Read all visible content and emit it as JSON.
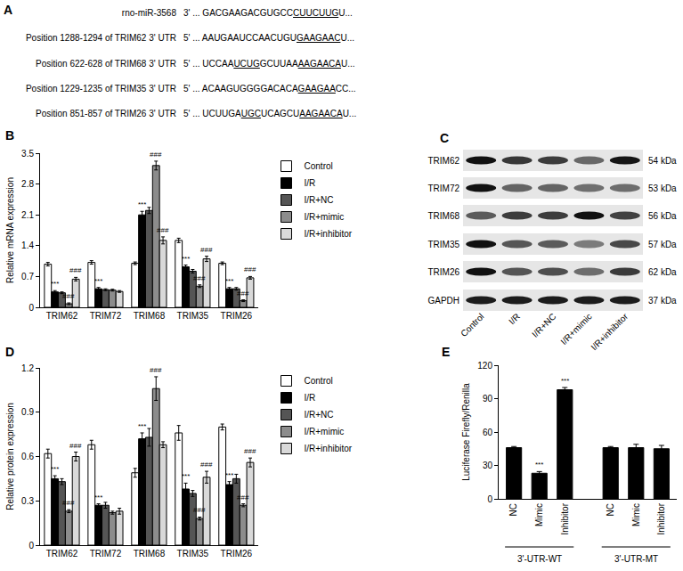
{
  "chart_data": [
    {
      "panel": "B",
      "type": "bar",
      "y_label": "Relative mRNA expression",
      "categories": [
        "TRIM62",
        "TRIM72",
        "TRIM68",
        "TRIM35",
        "TRIM26"
      ],
      "series": [
        {
          "name": "Control",
          "color": "#ffffff",
          "values": [
            0.98,
            1.02,
            1.0,
            1.52,
            1.0
          ],
          "error": [
            0.04,
            0.04,
            0.03,
            0.05,
            0.03
          ],
          "significance": [
            null,
            null,
            null,
            null,
            null
          ]
        },
        {
          "name": "I/R",
          "color": "#000000",
          "values": [
            0.35,
            0.42,
            2.1,
            0.92,
            0.42
          ],
          "error": [
            0.03,
            0.03,
            0.08,
            0.04,
            0.03
          ],
          "significance": [
            "***",
            "***",
            "***",
            "***",
            "***"
          ]
        },
        {
          "name": "I/R+NC",
          "color": "#555555",
          "values": [
            0.33,
            0.4,
            2.2,
            0.82,
            0.42
          ],
          "error": [
            0.02,
            0.02,
            0.07,
            0.04,
            0.03
          ],
          "significance": [
            null,
            null,
            null,
            null,
            null
          ]
        },
        {
          "name": "I/R+mimic",
          "color": "#8c8c8c",
          "values": [
            0.08,
            0.39,
            3.22,
            0.48,
            0.15
          ],
          "error": [
            0.02,
            0.02,
            0.1,
            0.03,
            0.02
          ],
          "significance": [
            "###",
            null,
            "###",
            "###",
            "###"
          ]
        },
        {
          "name": "I/R+inhibitor",
          "color": "#d9d9d9",
          "values": [
            0.64,
            0.36,
            1.52,
            1.1,
            0.67
          ],
          "error": [
            0.04,
            0.02,
            0.08,
            0.06,
            0.03
          ],
          "significance": [
            "###",
            null,
            "###",
            "###",
            "###"
          ]
        }
      ],
      "ylim": [
        0,
        3.5
      ],
      "yticks": [
        0,
        0.7,
        1.4,
        2.1,
        2.8,
        3.5
      ],
      "grid": false,
      "legend": "right"
    },
    {
      "panel": "D",
      "type": "bar",
      "y_label": "Relative protein expression",
      "categories": [
        "TRIM62",
        "TRIM72",
        "TRIM68",
        "TRIM35",
        "TRIM26"
      ],
      "series": [
        {
          "name": "Control",
          "color": "#ffffff",
          "values": [
            0.62,
            0.68,
            0.49,
            0.76,
            0.8
          ],
          "error": [
            0.03,
            0.03,
            0.03,
            0.05,
            0.02
          ],
          "significance": [
            null,
            null,
            null,
            null,
            null
          ]
        },
        {
          "name": "I/R",
          "color": "#000000",
          "values": [
            0.45,
            0.27,
            0.72,
            0.38,
            0.41
          ],
          "error": [
            0.02,
            0.01,
            0.04,
            0.04,
            0.02
          ],
          "significance": [
            "***",
            "***",
            "***",
            "***",
            "***"
          ]
        },
        {
          "name": "I/R+NC",
          "color": "#555555",
          "values": [
            0.43,
            0.27,
            0.73,
            0.35,
            0.45
          ],
          "error": [
            0.02,
            0.02,
            0.06,
            0.02,
            0.03
          ],
          "significance": [
            null,
            null,
            null,
            null,
            null
          ]
        },
        {
          "name": "I/R+mimic",
          "color": "#8c8c8c",
          "values": [
            0.23,
            0.22,
            1.06,
            0.18,
            0.27
          ],
          "error": [
            0.01,
            0.01,
            0.08,
            0.01,
            0.01
          ],
          "significance": [
            "###",
            null,
            "###",
            "###",
            "###"
          ]
        },
        {
          "name": "I/R+inhibitor",
          "color": "#d9d9d9",
          "values": [
            0.6,
            0.23,
            0.68,
            0.46,
            0.56
          ],
          "error": [
            0.03,
            0.02,
            0.02,
            0.04,
            0.03
          ],
          "significance": [
            "###",
            null,
            null,
            "###",
            "###"
          ]
        }
      ],
      "ylim": [
        0,
        1.2
      ],
      "yticks": [
        0,
        0.3,
        0.6,
        0.9,
        1.2
      ],
      "grid": false,
      "legend": "right"
    },
    {
      "panel": "E",
      "type": "bar",
      "y_label": "Luciferase Firefly/Renilla",
      "categories": [
        "NC",
        "Mimic",
        "Inhibitor",
        "NC",
        "Mimic",
        "Inhibitor"
      ],
      "groups": [
        "3'-UTR-WT",
        "3'-UTR-WT",
        "3'-UTR-WT",
        "3'-UTR-MT",
        "3'-UTR-MT",
        "3'-UTR-MT"
      ],
      "color": "#000000",
      "values": [
        46,
        23,
        98,
        46,
        46,
        45
      ],
      "error": [
        1,
        1.5,
        2,
        1,
        3,
        3
      ],
      "significance": [
        null,
        "***",
        "***",
        null,
        null,
        null
      ],
      "ylim": [
        0,
        120
      ],
      "yticks": [
        0,
        30,
        60,
        90,
        120
      ],
      "grid": false
    }
  ],
  "panel_a": {
    "label": "A",
    "rows": [
      {
        "name": "rno-miR-3568",
        "sequence": [
          {
            "text": "3' ... GACGAAGACGUGCC",
            "underline": false
          },
          {
            "text": "CUUCUUG",
            "underline": true
          },
          {
            "text": "U...",
            "underline": false
          }
        ]
      },
      {
        "name": "Position 1288-1294 of TRIM62 3' UTR",
        "sequence": [
          {
            "text": "5' ... AAUGAAUCCAACUGU",
            "underline": false
          },
          {
            "text": "GAAGAAC",
            "underline": true
          },
          {
            "text": "U...",
            "underline": false
          }
        ]
      },
      {
        "name": "Position 622-628 of TRIM68 3' UTR",
        "sequence": [
          {
            "text": "5' ... UCCAA",
            "underline": false
          },
          {
            "text": "UCUG",
            "underline": true
          },
          {
            "text": "GCUUAA",
            "underline": false
          },
          {
            "text": "AAGAACA",
            "underline": true
          },
          {
            "text": "U...",
            "underline": false
          }
        ]
      },
      {
        "name": "Position 1229-1235 of TRIM35 3' UTR",
        "sequence": [
          {
            "text": "5' ... ACAAGUGGGGACACA",
            "underline": false
          },
          {
            "text": "GAAGAA",
            "underline": true
          },
          {
            "text": "CC...",
            "underline": false
          }
        ]
      },
      {
        "name": "Position 851-857 of TRIM26 3' UTR",
        "sequence": [
          {
            "text": "5' ... UCUUGA",
            "underline": false
          },
          {
            "text": "UGC",
            "underline": true
          },
          {
            "text": "UCAGCU",
            "underline": false
          },
          {
            "text": "AAGAACA",
            "underline": true
          },
          {
            "text": "U...",
            "underline": false
          }
        ]
      }
    ]
  },
  "panel_c": {
    "label": "C",
    "rows": [
      {
        "protein": "TRIM62",
        "size": "54 kDa"
      },
      {
        "protein": "TRIM72",
        "size": "53 kDa"
      },
      {
        "protein": "TRIM68",
        "size": "56 kDa"
      },
      {
        "protein": "TRIM35",
        "size": "57 kDa"
      },
      {
        "protein": "TRIM26",
        "size": "62 kDa"
      },
      {
        "protein": "GAPDH",
        "size": "37 kDa"
      }
    ],
    "lanes": [
      "Control",
      "I/R",
      "I/R+NC",
      "I/R+mimic",
      "I/R+inhibitor"
    ]
  }
}
